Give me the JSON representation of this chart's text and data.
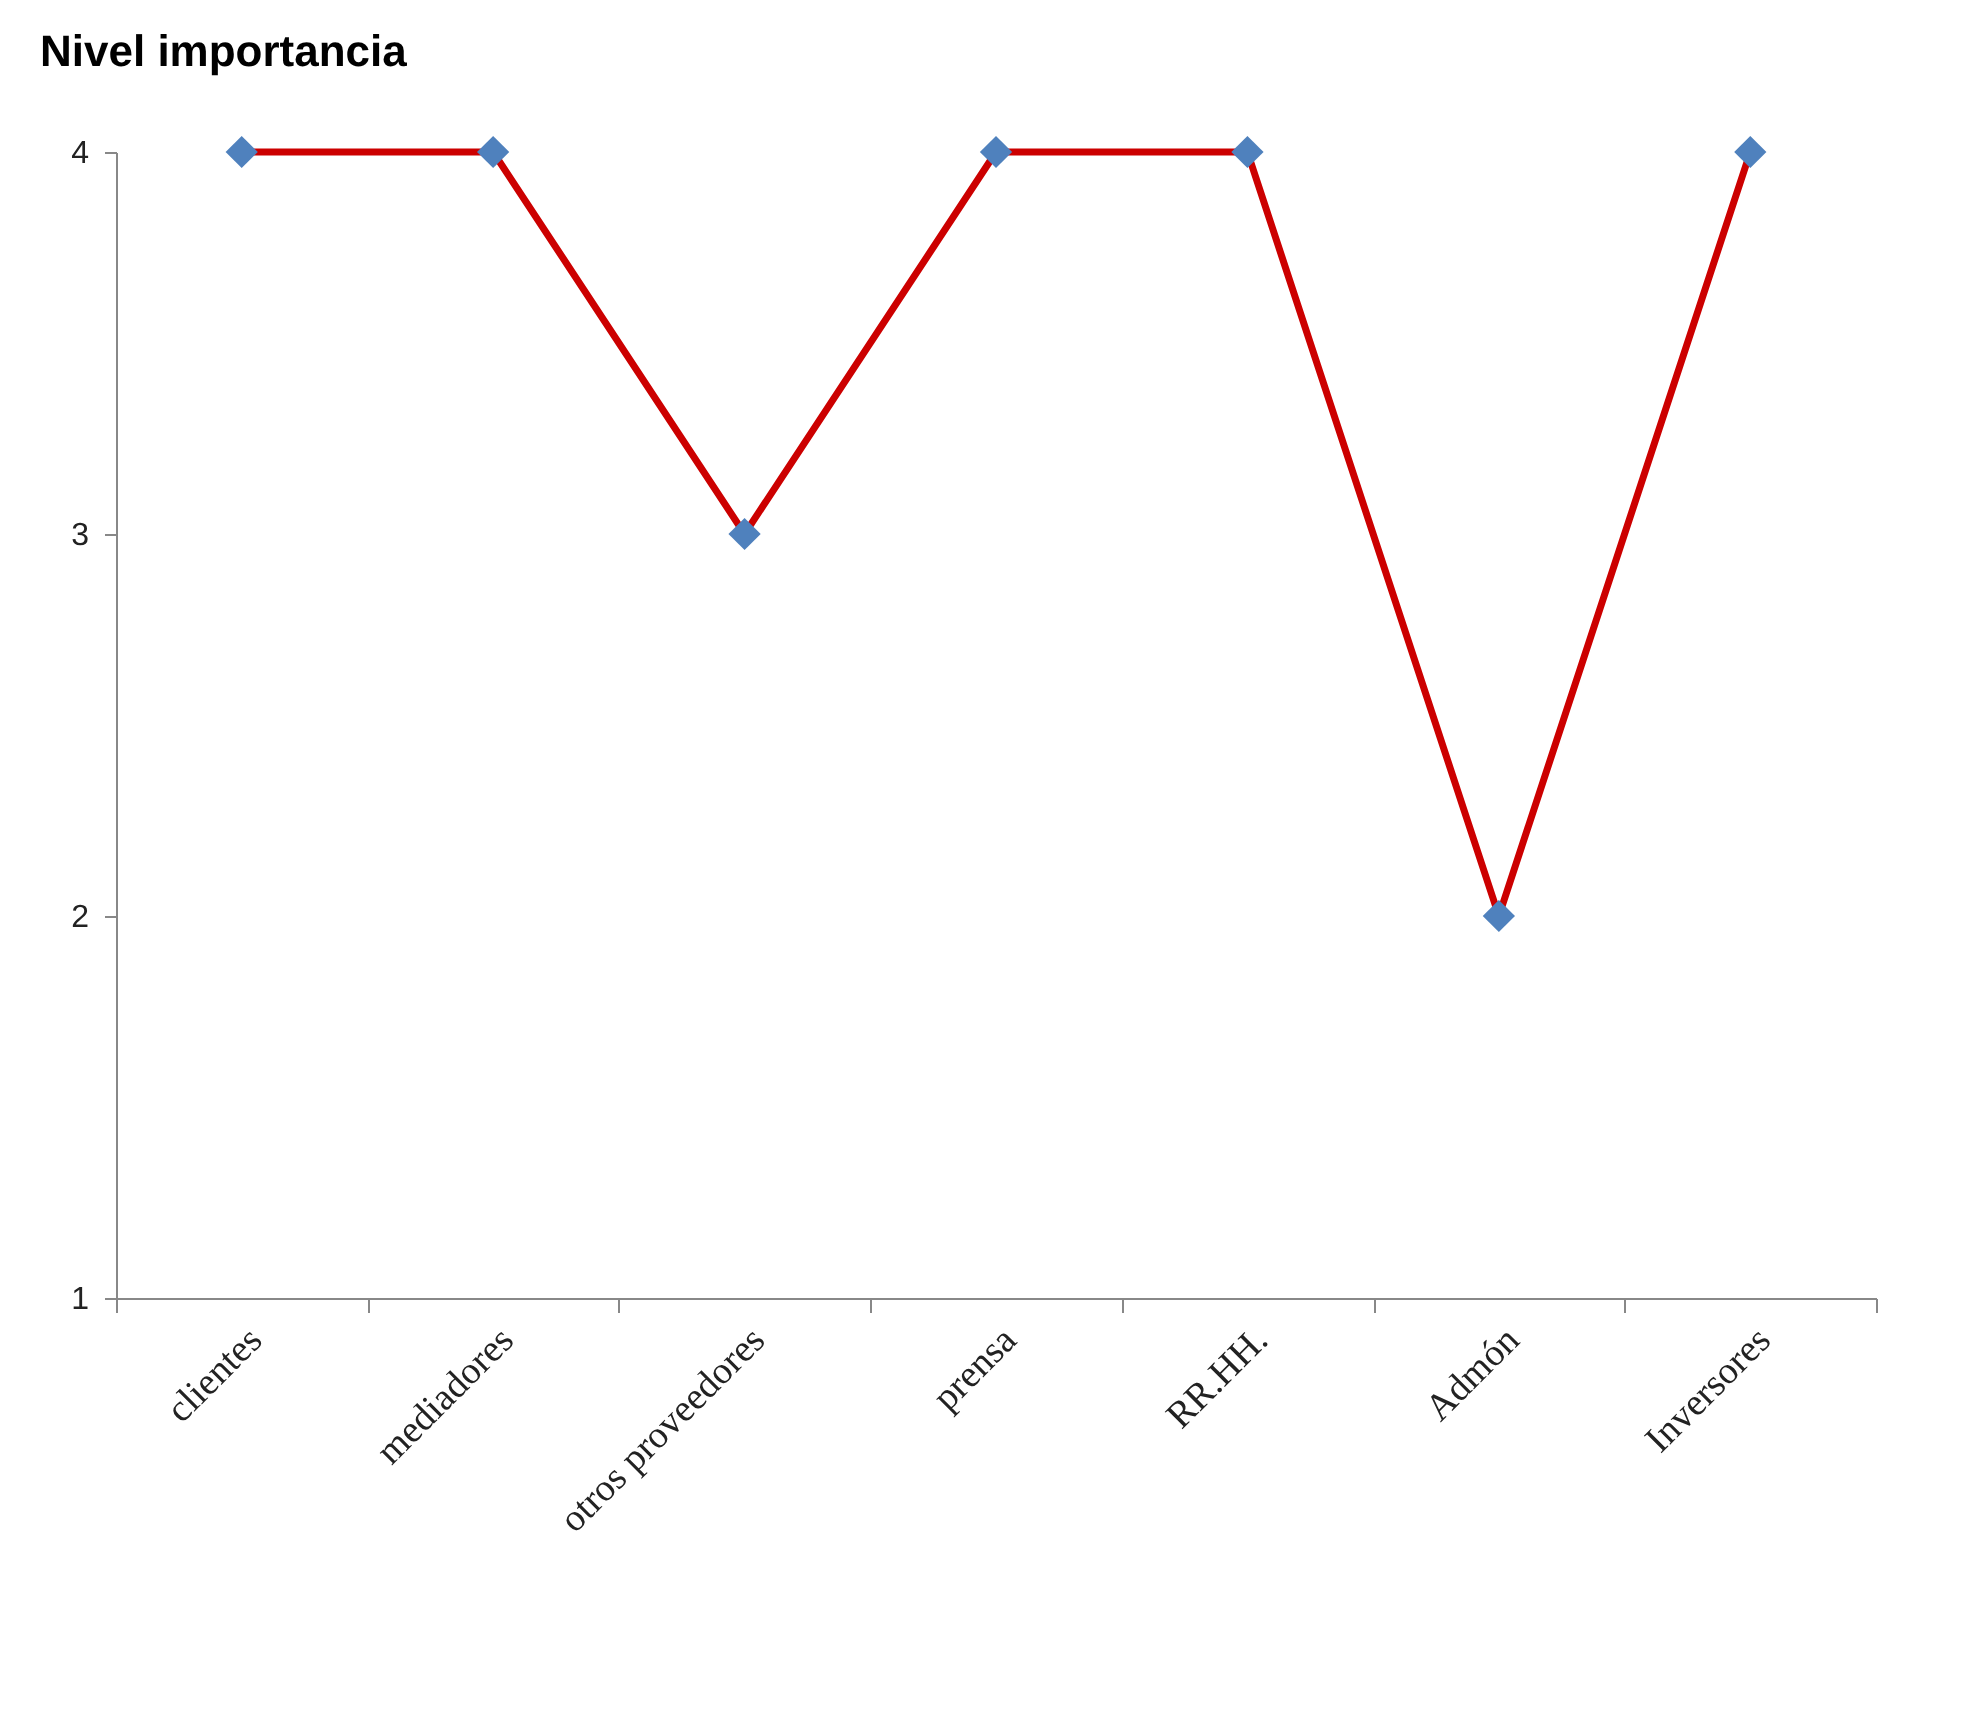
{
  "chart_data": {
    "type": "line",
    "title": "Nivel importancia",
    "categories": [
      "clientes",
      "mediadores",
      "otros proveedores",
      "prensa",
      "RR.HH.",
      "Admón",
      "Inversores"
    ],
    "series": [
      {
        "color": "#cc0000",
        "colors": [
          "#4f81bd",
          "#4f81bd",
          "#4f81bd",
          "#4f81bd",
          "#4f81bd",
          "#4f81bd",
          "#4f81bd"
        ],
        "values": [
          4,
          4,
          3,
          4,
          4,
          2,
          4
        ]
      }
    ],
    "ylim": [
      1,
      4
    ],
    "yticks": [
      1,
      2,
      3,
      4
    ],
    "grid": false,
    "marker": "diamond",
    "line_style": "solid"
  }
}
